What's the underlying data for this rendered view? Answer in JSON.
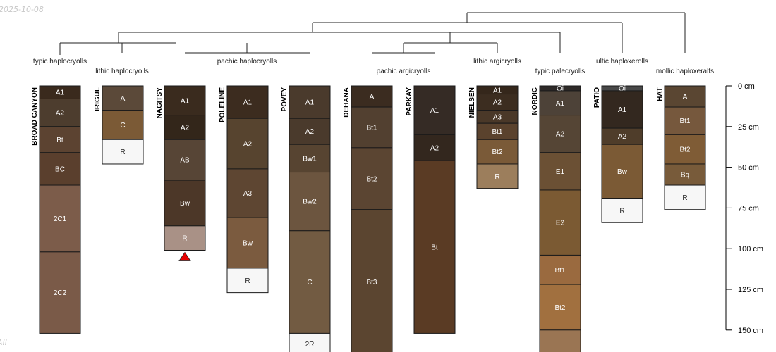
{
  "date_stamp": "2025-10-08",
  "footer_fragment": "All",
  "depth_scale": {
    "unit": "cm",
    "ticks": [
      0,
      25,
      50,
      75,
      100,
      125,
      150
    ]
  },
  "colors": {
    "horizon_border": "#1a1a1a",
    "tree_line": "#222222",
    "label_light": "#ffffff",
    "label_dark": "#222222",
    "marker_fill": "#e60000"
  },
  "taxa": [
    {
      "name": "typic haplocryolls",
      "row": "upper"
    },
    {
      "name": "lithic haplocryolls",
      "row": "lower"
    },
    {
      "name": "pachic haplocryolls",
      "row": "upper"
    },
    {
      "name": "pachic argicryolls",
      "row": "lower"
    },
    {
      "name": "lithic argicryolls",
      "row": "upper"
    },
    {
      "name": "typic palecryolls",
      "row": "lower"
    },
    {
      "name": "ultic haploxerolls",
      "row": "upper"
    },
    {
      "name": "mollic haploxeralfs",
      "row": "lower"
    }
  ],
  "profiles": [
    {
      "name": "BROAD CANYON",
      "horizons": [
        {
          "name": "A1",
          "top": 0,
          "bottom": 8,
          "color": "#3a2a1d"
        },
        {
          "name": "A2",
          "top": 8,
          "bottom": 25,
          "color": "#4d3d2e"
        },
        {
          "name": "Bt",
          "top": 25,
          "bottom": 41,
          "color": "#5c4331"
        },
        {
          "name": "BC",
          "top": 41,
          "bottom": 61,
          "color": "#5a3f2d"
        },
        {
          "name": "2C1",
          "top": 61,
          "bottom": 102,
          "color": "#7c5c4a"
        },
        {
          "name": "2C2",
          "top": 102,
          "bottom": 152,
          "color": "#7a5a48"
        }
      ]
    },
    {
      "name": "IRIGUL",
      "horizons": [
        {
          "name": "A",
          "top": 0,
          "bottom": 15,
          "color": "#5b4939"
        },
        {
          "name": "C",
          "top": 15,
          "bottom": 33,
          "color": "#7b5a36"
        },
        {
          "name": "R",
          "top": 33,
          "bottom": 48,
          "color": "#f7f7f7"
        }
      ]
    },
    {
      "name": "NAGITSY",
      "marker": true,
      "horizons": [
        {
          "name": "A1",
          "top": 0,
          "bottom": 18,
          "color": "#3a2b1e"
        },
        {
          "name": "A2",
          "top": 18,
          "bottom": 33,
          "color": "#33261a"
        },
        {
          "name": "AB",
          "top": 33,
          "bottom": 58,
          "color": "#574536"
        },
        {
          "name": "Bw",
          "top": 58,
          "bottom": 86,
          "color": "#4c3728"
        },
        {
          "name": "R",
          "top": 86,
          "bottom": 101,
          "color": "#a99186"
        }
      ]
    },
    {
      "name": "POLELINE",
      "horizons": [
        {
          "name": "A1",
          "top": 0,
          "bottom": 20,
          "color": "#3c2c1f"
        },
        {
          "name": "A2",
          "top": 20,
          "bottom": 51,
          "color": "#57442f"
        },
        {
          "name": "A3",
          "top": 51,
          "bottom": 81,
          "color": "#5e4632"
        },
        {
          "name": "Bw",
          "top": 81,
          "bottom": 112,
          "color": "#7b5b3f"
        },
        {
          "name": "R",
          "top": 112,
          "bottom": 127,
          "color": "#f7f7f7"
        }
      ]
    },
    {
      "name": "POVEY",
      "horizons": [
        {
          "name": "A1",
          "top": 0,
          "bottom": 20,
          "color": "#4a3a2c"
        },
        {
          "name": "A2",
          "top": 20,
          "bottom": 36,
          "color": "#4a3a2c"
        },
        {
          "name": "Bw1",
          "top": 36,
          "bottom": 53,
          "color": "#574431"
        },
        {
          "name": "Bw2",
          "top": 53,
          "bottom": 89,
          "color": "#6c553f"
        },
        {
          "name": "C",
          "top": 89,
          "bottom": 152,
          "color": "#725b42"
        },
        {
          "name": "2R",
          "top": 152,
          "bottom": 165,
          "color": "#f7f7f7"
        }
      ]
    },
    {
      "name": "DEHANA",
      "horizons": [
        {
          "name": "A",
          "top": 0,
          "bottom": 13,
          "color": "#3b2c20"
        },
        {
          "name": "Bt1",
          "top": 13,
          "bottom": 38,
          "color": "#524030"
        },
        {
          "name": "Bt2",
          "top": 38,
          "bottom": 76,
          "color": "#5b4532"
        },
        {
          "name": "Bt3",
          "top": 76,
          "bottom": 165,
          "color": "#5b4530"
        }
      ]
    },
    {
      "name": "PARKAY",
      "horizons": [
        {
          "name": "A1",
          "top": 0,
          "bottom": 30,
          "color": "#352b25"
        },
        {
          "name": "A2",
          "top": 30,
          "bottom": 46,
          "color": "#33271e"
        },
        {
          "name": "Bt",
          "top": 46,
          "bottom": 152,
          "color": "#5a3b24"
        }
      ]
    },
    {
      "name": "NIELSEN",
      "horizons": [
        {
          "name": "A1",
          "top": 0,
          "bottom": 5,
          "color": "#35271b"
        },
        {
          "name": "A2",
          "top": 5,
          "bottom": 15,
          "color": "#3c2d20"
        },
        {
          "name": "A3",
          "top": 15,
          "bottom": 23,
          "color": "#4a3828"
        },
        {
          "name": "Bt1",
          "top": 23,
          "bottom": 33,
          "color": "#5a422d"
        },
        {
          "name": "Bt2",
          "top": 33,
          "bottom": 48,
          "color": "#7a5a38"
        },
        {
          "name": "R",
          "top": 48,
          "bottom": 63,
          "color": "#9c7e5c"
        }
      ]
    },
    {
      "name": "NORDIC",
      "horizons": [
        {
          "name": "Oi",
          "top": 0,
          "bottom": 3,
          "color": "#2e2a28"
        },
        {
          "name": "A1",
          "top": 3,
          "bottom": 18,
          "color": "#4d4238"
        },
        {
          "name": "A2",
          "top": 18,
          "bottom": 41,
          "color": "#554535"
        },
        {
          "name": "E1",
          "top": 41,
          "bottom": 64,
          "color": "#6b5034"
        },
        {
          "name": "E2",
          "top": 64,
          "bottom": 104,
          "color": "#7b5a33"
        },
        {
          "name": "Bt1",
          "top": 104,
          "bottom": 122,
          "color": "#9a6a3f"
        },
        {
          "name": "Bt2",
          "top": 122,
          "bottom": 150,
          "color": "#a1703f"
        },
        {
          "name": "",
          "top": 150,
          "bottom": 165,
          "color": "#9a7553"
        }
      ]
    },
    {
      "name": "PATIO",
      "horizons": [
        {
          "name": "Oi",
          "top": 0,
          "bottom": 3,
          "color": "#484848"
        },
        {
          "name": "A1",
          "top": 3,
          "bottom": 26,
          "color": "#33281f"
        },
        {
          "name": "A2",
          "top": 26,
          "bottom": 36,
          "color": "#4f3d2a"
        },
        {
          "name": "Bw",
          "top": 36,
          "bottom": 69,
          "color": "#7b5a35"
        },
        {
          "name": "R",
          "top": 69,
          "bottom": 84,
          "color": "#f7f7f7"
        }
      ]
    },
    {
      "name": "HAT",
      "horizons": [
        {
          "name": "A",
          "top": 0,
          "bottom": 13,
          "color": "#5a4632"
        },
        {
          "name": "Bt1",
          "top": 13,
          "bottom": 30,
          "color": "#76583d"
        },
        {
          "name": "Bt2",
          "top": 30,
          "bottom": 48,
          "color": "#7f5c36"
        },
        {
          "name": "Bq",
          "top": 48,
          "bottom": 61,
          "color": "#785b3a"
        },
        {
          "name": "R",
          "top": 61,
          "bottom": 76,
          "color": "#f7f7f7"
        }
      ]
    }
  ]
}
